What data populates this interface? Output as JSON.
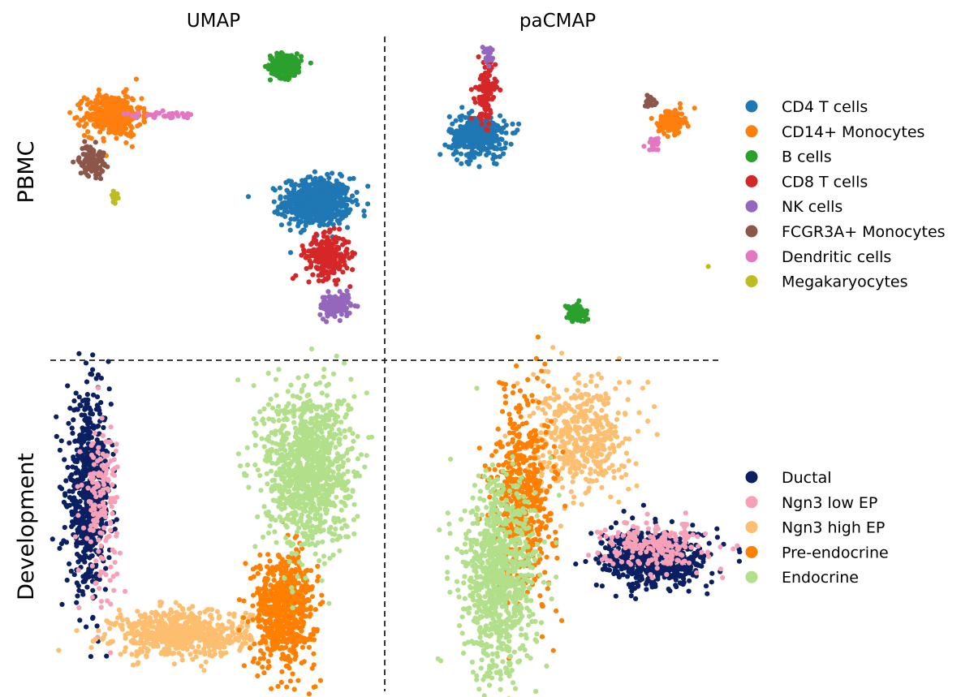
{
  "columns": [
    "UMAP",
    "paCMAP"
  ],
  "rows": [
    "PBMC",
    "Development"
  ],
  "chart_data": [
    {
      "type": "scatter",
      "panel": "PBMC / UMAP",
      "legend": "right",
      "series": [
        {
          "name": "CD4 T cells",
          "color": "#1f77b4",
          "clusters": [
            {
              "cx": 0.66,
              "cy": -0.05,
              "sx": 0.11,
              "sy": 0.08,
              "n": 620
            }
          ]
        },
        {
          "name": "CD14+ Monocytes",
          "color": "#ff7f0e",
          "clusters": [
            {
              "cx": -0.66,
              "cy": 0.53,
              "sx": 0.09,
              "sy": 0.07,
              "n": 380
            }
          ]
        },
        {
          "name": "B cells",
          "color": "#2ca02c",
          "clusters": [
            {
              "cx": 0.46,
              "cy": 0.86,
              "sx": 0.05,
              "sy": 0.04,
              "n": 260
            }
          ]
        },
        {
          "name": "CD8 T cells",
          "color": "#d62728",
          "clusters": [
            {
              "cx": 0.73,
              "cy": -0.41,
              "sx": 0.07,
              "sy": 0.07,
              "n": 260
            }
          ]
        },
        {
          "name": "NK cells",
          "color": "#9467bd",
          "clusters": [
            {
              "cx": 0.78,
              "cy": -0.74,
              "sx": 0.05,
              "sy": 0.04,
              "n": 140
            }
          ]
        },
        {
          "name": "FCGR3A+ Monocytes",
          "color": "#8c564b",
          "clusters": [
            {
              "cx": -0.8,
              "cy": 0.23,
              "sx": 0.04,
              "sy": 0.05,
              "n": 110
            }
          ]
        },
        {
          "name": "Dendritic cells",
          "color": "#e377c2",
          "clusters": [
            {
              "cx": -0.35,
              "cy": 0.53,
              "sx": 0.12,
              "sy": 0.01,
              "n": 40
            }
          ]
        },
        {
          "name": "Megakaryocytes",
          "color": "#bcbd22",
          "clusters": [
            {
              "cx": -0.65,
              "cy": -0.01,
              "sx": 0.01,
              "sy": 0.02,
              "n": 14
            }
          ]
        }
      ]
    },
    {
      "type": "scatter",
      "panel": "PBMC / paCMAP",
      "series": [
        {
          "name": "CD4 T cells",
          "color": "#1f77b4",
          "clusters": [
            {
              "cx": -0.5,
              "cy": 0.39,
              "sx": 0.09,
              "sy": 0.07,
              "n": 360
            }
          ]
        },
        {
          "name": "CD14+ Monocytes",
          "color": "#ff7f0e",
          "clusters": [
            {
              "cx": 0.73,
              "cy": 0.49,
              "sx": 0.04,
              "sy": 0.04,
              "n": 150
            }
          ]
        },
        {
          "name": "B cells",
          "color": "#2ca02c",
          "clusters": [
            {
              "cx": 0.12,
              "cy": -0.79,
              "sx": 0.03,
              "sy": 0.03,
              "n": 110
            }
          ]
        },
        {
          "name": "CD8 T cells",
          "color": "#d62728",
          "clusters": [
            {
              "cx": -0.45,
              "cy": 0.68,
              "sx": 0.03,
              "sy": 0.1,
              "n": 120
            }
          ]
        },
        {
          "name": "NK cells",
          "color": "#9467bd",
          "clusters": [
            {
              "cx": -0.44,
              "cy": 0.93,
              "sx": 0.015,
              "sy": 0.03,
              "n": 25
            }
          ]
        },
        {
          "name": "FCGR3A+ Monocytes",
          "color": "#8c564b",
          "clusters": [
            {
              "cx": 0.59,
              "cy": 0.62,
              "sx": 0.02,
              "sy": 0.02,
              "n": 20
            }
          ]
        },
        {
          "name": "Dendritic cells",
          "color": "#e377c2",
          "clusters": [
            {
              "cx": 0.62,
              "cy": 0.34,
              "sx": 0.03,
              "sy": 0.02,
              "n": 20
            }
          ]
        },
        {
          "name": "Megakaryocytes",
          "color": "#bcbd22",
          "clusters": [
            {
              "cx": 0.97,
              "cy": -0.48,
              "sx": 0.003,
              "sy": 0.003,
              "n": 1
            }
          ]
        }
      ]
    },
    {
      "type": "scatter",
      "panel": "Development / UMAP",
      "legend": "right",
      "series": [
        {
          "name": "Ductal",
          "color": "#0b1f63",
          "clusters": [
            {
              "cx": -0.82,
              "cy": 0.25,
              "sx": 0.07,
              "sy": 0.33,
              "n": 650
            }
          ]
        },
        {
          "name": "Ngn3 low EP",
          "color": "#f7a1b8",
          "clusters": [
            {
              "cx": -0.74,
              "cy": 0.2,
              "sx": 0.06,
              "sy": 0.3,
              "n": 160
            }
          ]
        },
        {
          "name": "Ngn3 high EP",
          "color": "#fdbf6f",
          "clusters": [
            {
              "cx": -0.22,
              "cy": -0.72,
              "sx": 0.22,
              "sy": 0.08,
              "n": 620
            }
          ]
        },
        {
          "name": "Pre-endocrine",
          "color": "#ff7f00",
          "clusters": [
            {
              "cx": 0.45,
              "cy": -0.55,
              "sx": 0.1,
              "sy": 0.2,
              "n": 620
            }
          ]
        },
        {
          "name": "Endocrine",
          "color": "#b2df8a",
          "clusters": [
            {
              "cx": 0.6,
              "cy": 0.45,
              "sx": 0.14,
              "sy": 0.28,
              "n": 1050
            }
          ]
        }
      ]
    },
    {
      "type": "scatter",
      "panel": "Development / paCMAP",
      "series": [
        {
          "name": "Ductal",
          "color": "#0b1f63",
          "clusters": [
            {
              "cx": 0.62,
              "cy": -0.2,
              "sx": 0.17,
              "sy": 0.1,
              "n": 600
            }
          ]
        },
        {
          "name": "Ngn3 low EP",
          "color": "#f7a1b8",
          "clusters": [
            {
              "cx": 0.62,
              "cy": -0.1,
              "sx": 0.16,
              "sy": 0.08,
              "n": 200
            }
          ]
        },
        {
          "name": "Ngn3 high EP",
          "color": "#fdbf6f",
          "clusters": [
            {
              "cx": 0.15,
              "cy": 0.65,
              "sx": 0.15,
              "sy": 0.2,
              "n": 450
            }
          ]
        },
        {
          "name": "Pre-endocrine",
          "color": "#ff7f00",
          "clusters": [
            {
              "cx": -0.22,
              "cy": 0.25,
              "sx": 0.1,
              "sy": 0.35,
              "n": 500
            }
          ]
        },
        {
          "name": "Endocrine",
          "color": "#b2df8a",
          "clusters": [
            {
              "cx": -0.38,
              "cy": -0.35,
              "sx": 0.12,
              "sy": 0.35,
              "n": 850
            }
          ]
        }
      ]
    }
  ]
}
